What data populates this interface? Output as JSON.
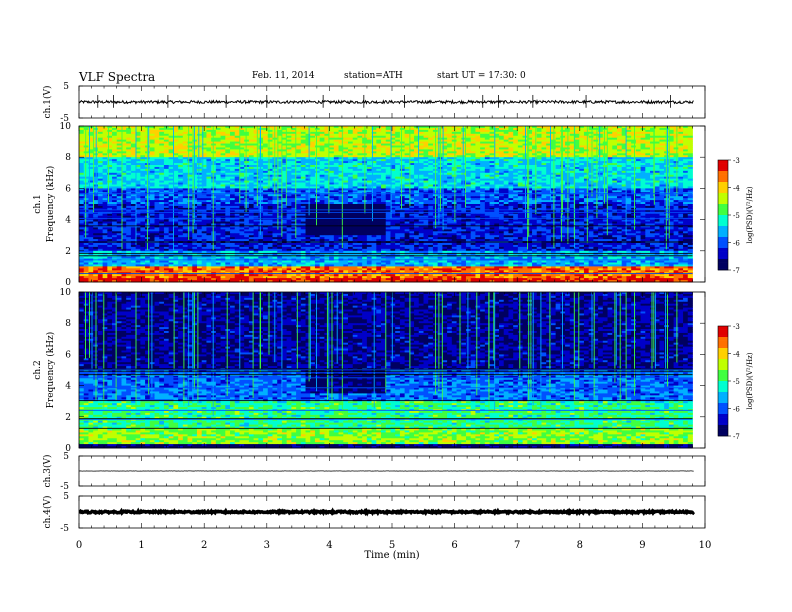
{
  "header": {
    "title": "VLF  Spectra",
    "date": "Feb. 11, 2014",
    "station": "station=ATH",
    "start": "start  UT  =   17:30: 0"
  },
  "colors": {
    "background": "#ffffff",
    "ink": "#000000",
    "colormap": [
      "#000060",
      "#0000c8",
      "#0050ff",
      "#00b0ff",
      "#00ffd0",
      "#40ff40",
      "#c0ff00",
      "#ffd000",
      "#ff7000",
      "#e00000",
      "#ffffff"
    ]
  },
  "chart_data": [
    {
      "id": "ch1-waveform",
      "type": "line",
      "ylabel": "ch.1(V)",
      "ylim": [
        -5,
        5
      ],
      "yticks": [
        "5",
        "-5"
      ],
      "xlim": [
        0,
        10
      ],
      "baseline": 0,
      "noise_amplitude": 0.45,
      "spike_times_min": [
        0.3,
        0.55,
        1.42,
        2.35,
        3.0,
        3.9,
        4.55,
        5.2,
        6.45,
        6.7,
        7.25,
        8.1,
        9.45
      ]
    },
    {
      "id": "ch1-spectrogram",
      "type": "heatmap",
      "ylabel": "ch.1\nFrequency  (kHz)",
      "xlim": [
        0,
        10
      ],
      "data_xmax": 9.8,
      "ylim": [
        0,
        10
      ],
      "yticks": [
        "0",
        "2",
        "4",
        "6",
        "8",
        "10"
      ],
      "colorbar": {
        "label": "log(PSD)(V²/Hz)",
        "range": [
          -7,
          -3
        ],
        "ticks": [
          "-3",
          "-4",
          "-5",
          "-6",
          "-7"
        ]
      },
      "levels": [
        {
          "from_khz": 0,
          "to_khz": 0.3,
          "log_psd": -3.2
        },
        {
          "from_khz": 0.3,
          "to_khz": 1.0,
          "log_psd": -3.6
        },
        {
          "from_khz": 1.0,
          "to_khz": 2.0,
          "log_psd": -5.6
        },
        {
          "from_khz": 2.0,
          "to_khz": 5.0,
          "log_psd": -6.3
        },
        {
          "from_khz": 5.0,
          "to_khz": 6.0,
          "log_psd": -6.0
        },
        {
          "from_khz": 6.0,
          "to_khz": 8.0,
          "log_psd": -5.4
        },
        {
          "from_khz": 8.0,
          "to_khz": 10.0,
          "log_psd": -4.4
        }
      ],
      "quiet_interval_min": [
        3.65,
        4.9
      ],
      "quiet_band_khz": [
        3.0,
        5.0
      ]
    },
    {
      "id": "ch2-spectrogram",
      "type": "heatmap",
      "ylabel": "ch.2\nFrequency  (kHz)",
      "xlim": [
        0,
        10
      ],
      "data_xmax": 9.8,
      "ylim": [
        0,
        10
      ],
      "yticks": [
        "0",
        "2",
        "4",
        "6",
        "8",
        "10"
      ],
      "colorbar": {
        "label": "log(PSD)(V²/Hz)",
        "range": [
          -7,
          -3
        ],
        "ticks": [
          "-3",
          "-4",
          "-5",
          "-6",
          "-7"
        ]
      },
      "levels": [
        {
          "from_khz": 0,
          "to_khz": 0.3,
          "log_psd": -6.8
        },
        {
          "from_khz": 0.3,
          "to_khz": 1.2,
          "log_psd": -4.6
        },
        {
          "from_khz": 1.2,
          "to_khz": 3.0,
          "log_psd": -5.0
        },
        {
          "from_khz": 3.0,
          "to_khz": 5.0,
          "log_psd": -5.9
        },
        {
          "from_khz": 5.0,
          "to_khz": 10.0,
          "log_psd": -6.6
        }
      ],
      "quiet_interval_min": [
        3.65,
        4.9
      ],
      "quiet_band_khz": [
        3.5,
        5.0
      ]
    },
    {
      "id": "ch3-waveform",
      "type": "line",
      "ylabel": "ch.3(V)",
      "ylim": [
        -5,
        5
      ],
      "yticks": [
        "5",
        "-5"
      ],
      "xlim": [
        0,
        10
      ],
      "baseline": 0,
      "noise_amplitude": 0.05
    },
    {
      "id": "ch4-waveform",
      "type": "line",
      "ylabel": "ch.4(V)",
      "ylim": [
        -5,
        5
      ],
      "yticks": [
        "5",
        "-5"
      ],
      "xlim": [
        0,
        10
      ],
      "baseline": 0,
      "noise_amplitude": 0.25,
      "xlabel": "Time  (min)",
      "xticks": [
        "0",
        "1",
        "2",
        "3",
        "4",
        "5",
        "6",
        "7",
        "8",
        "9",
        "10"
      ]
    }
  ]
}
